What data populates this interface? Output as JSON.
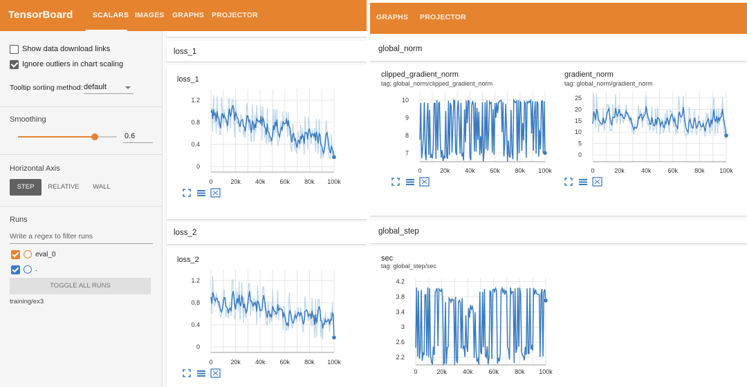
{
  "left_panel": {
    "brand": "TensorBoard",
    "nav_tabs": [
      "SCALARS",
      "IMAGES",
      "GRAPHS",
      "PROJECTOR"
    ],
    "sidebar": {
      "show_download_links": "Show data download links",
      "ignore_outliers": "Ignore outliers in chart scaling",
      "tooltip_label": "Tooltip sorting method:",
      "tooltip_value": "default",
      "smoothing_label": "Smoothing",
      "smoothing_value": "0.6",
      "smoothing_fraction": 0.6,
      "horizontal_axis_label": "Horizontal Axis",
      "axis_options": [
        "STEP",
        "RELATIVE",
        "WALL"
      ],
      "runs_label": "Runs",
      "filter_placeholder": "Write a regex to filter runs",
      "runs": [
        {
          "name": "eval_0",
          "color": "#e6832f"
        },
        {
          "name": ".",
          "color": "#3a7bbf"
        }
      ],
      "toggle_all_runs": "TOGGLE ALL RUNS",
      "log_dir": "training/ex3"
    },
    "cards": [
      {
        "header": "loss_1",
        "chart_title": "loss_1"
      },
      {
        "header": "loss_2",
        "chart_title": "loss_2"
      }
    ]
  },
  "right_panel": {
    "nav_tabs": [
      "GRAPHS",
      "PROJECTOR"
    ],
    "cards": [
      {
        "header": "global_norm"
      },
      {
        "header": "global_step"
      }
    ],
    "charts": {
      "clipped": {
        "title": "clipped_gradient_norm",
        "tag": "tag: global_norm/clipped_gradient_norm"
      },
      "gradient": {
        "title": "gradient_norm",
        "tag": "tag: global_norm/gradient_norm"
      },
      "sec": {
        "title": "sec",
        "tag": "tag: global_step/sec"
      }
    }
  },
  "colors": {
    "accent": "#e6832f",
    "series": "#3a7bbf",
    "series_light": "#bcd5ea"
  },
  "chart_data": [
    {
      "id": "loss_1",
      "type": "line",
      "title": "loss_1",
      "x_ticks": [
        "0",
        "20k",
        "40k",
        "60k",
        "80k",
        "100k"
      ],
      "y_ticks": [
        "0",
        "0.4",
        "0.8",
        "1.2"
      ],
      "xlim": [
        0,
        100000
      ],
      "ylim": [
        -0.1,
        1.4
      ],
      "series": [
        {
          "name": "loss_1",
          "start": 0.85,
          "end": 0.35,
          "final": 0.17,
          "noise": 0.28
        }
      ]
    },
    {
      "id": "loss_2",
      "type": "line",
      "title": "loss_2",
      "x_ticks": [
        "0",
        "20k",
        "40k",
        "60k",
        "80k",
        "100k"
      ],
      "y_ticks": [
        "0",
        "0.4",
        "0.8",
        "1.2"
      ],
      "xlim": [
        0,
        100000
      ],
      "ylim": [
        -0.1,
        1.4
      ],
      "series": [
        {
          "name": "loss_2",
          "start": 0.85,
          "end": 0.35,
          "final": 0.17,
          "noise": 0.28
        }
      ]
    },
    {
      "id": "clipped",
      "type": "line",
      "title": "clipped_gradient_norm",
      "x_ticks": [
        "0",
        "20k",
        "40k",
        "60k",
        "80k",
        "100k"
      ],
      "y_ticks": [
        "7",
        "8",
        "9",
        "10"
      ],
      "xlim": [
        0,
        100000
      ],
      "ylim": [
        6.5,
        10.5
      ],
      "series": [
        {
          "name": "clipped_gradient_norm",
          "start": 9.8,
          "end": 9.8,
          "final": 7.0,
          "noise": 2.8
        }
      ]
    },
    {
      "id": "gradient",
      "type": "line",
      "title": "gradient_norm",
      "x_ticks": [
        "0",
        "20k",
        "40k",
        "60k",
        "80k",
        "100k"
      ],
      "y_ticks": [
        "0",
        "5",
        "10",
        "15",
        "20",
        "25"
      ],
      "xlim": [
        0,
        100000
      ],
      "ylim": [
        -3,
        28
      ],
      "series": [
        {
          "name": "gradient_norm",
          "start": 16,
          "end": 14,
          "final": 8.5,
          "noise": 7
        }
      ]
    },
    {
      "id": "sec",
      "type": "line",
      "title": "sec",
      "x_ticks": [
        "0",
        "20k",
        "40k",
        "60k",
        "80k",
        "100k"
      ],
      "y_ticks": [
        "2.2",
        "2.6",
        "3",
        "3.4",
        "3.8",
        "4.2"
      ],
      "xlim": [
        0,
        100000
      ],
      "ylim": [
        2.0,
        4.3
      ],
      "series": [
        {
          "name": "sec",
          "start": 3.85,
          "end": 3.95,
          "final": 3.7,
          "noise": 1.4
        }
      ]
    }
  ]
}
